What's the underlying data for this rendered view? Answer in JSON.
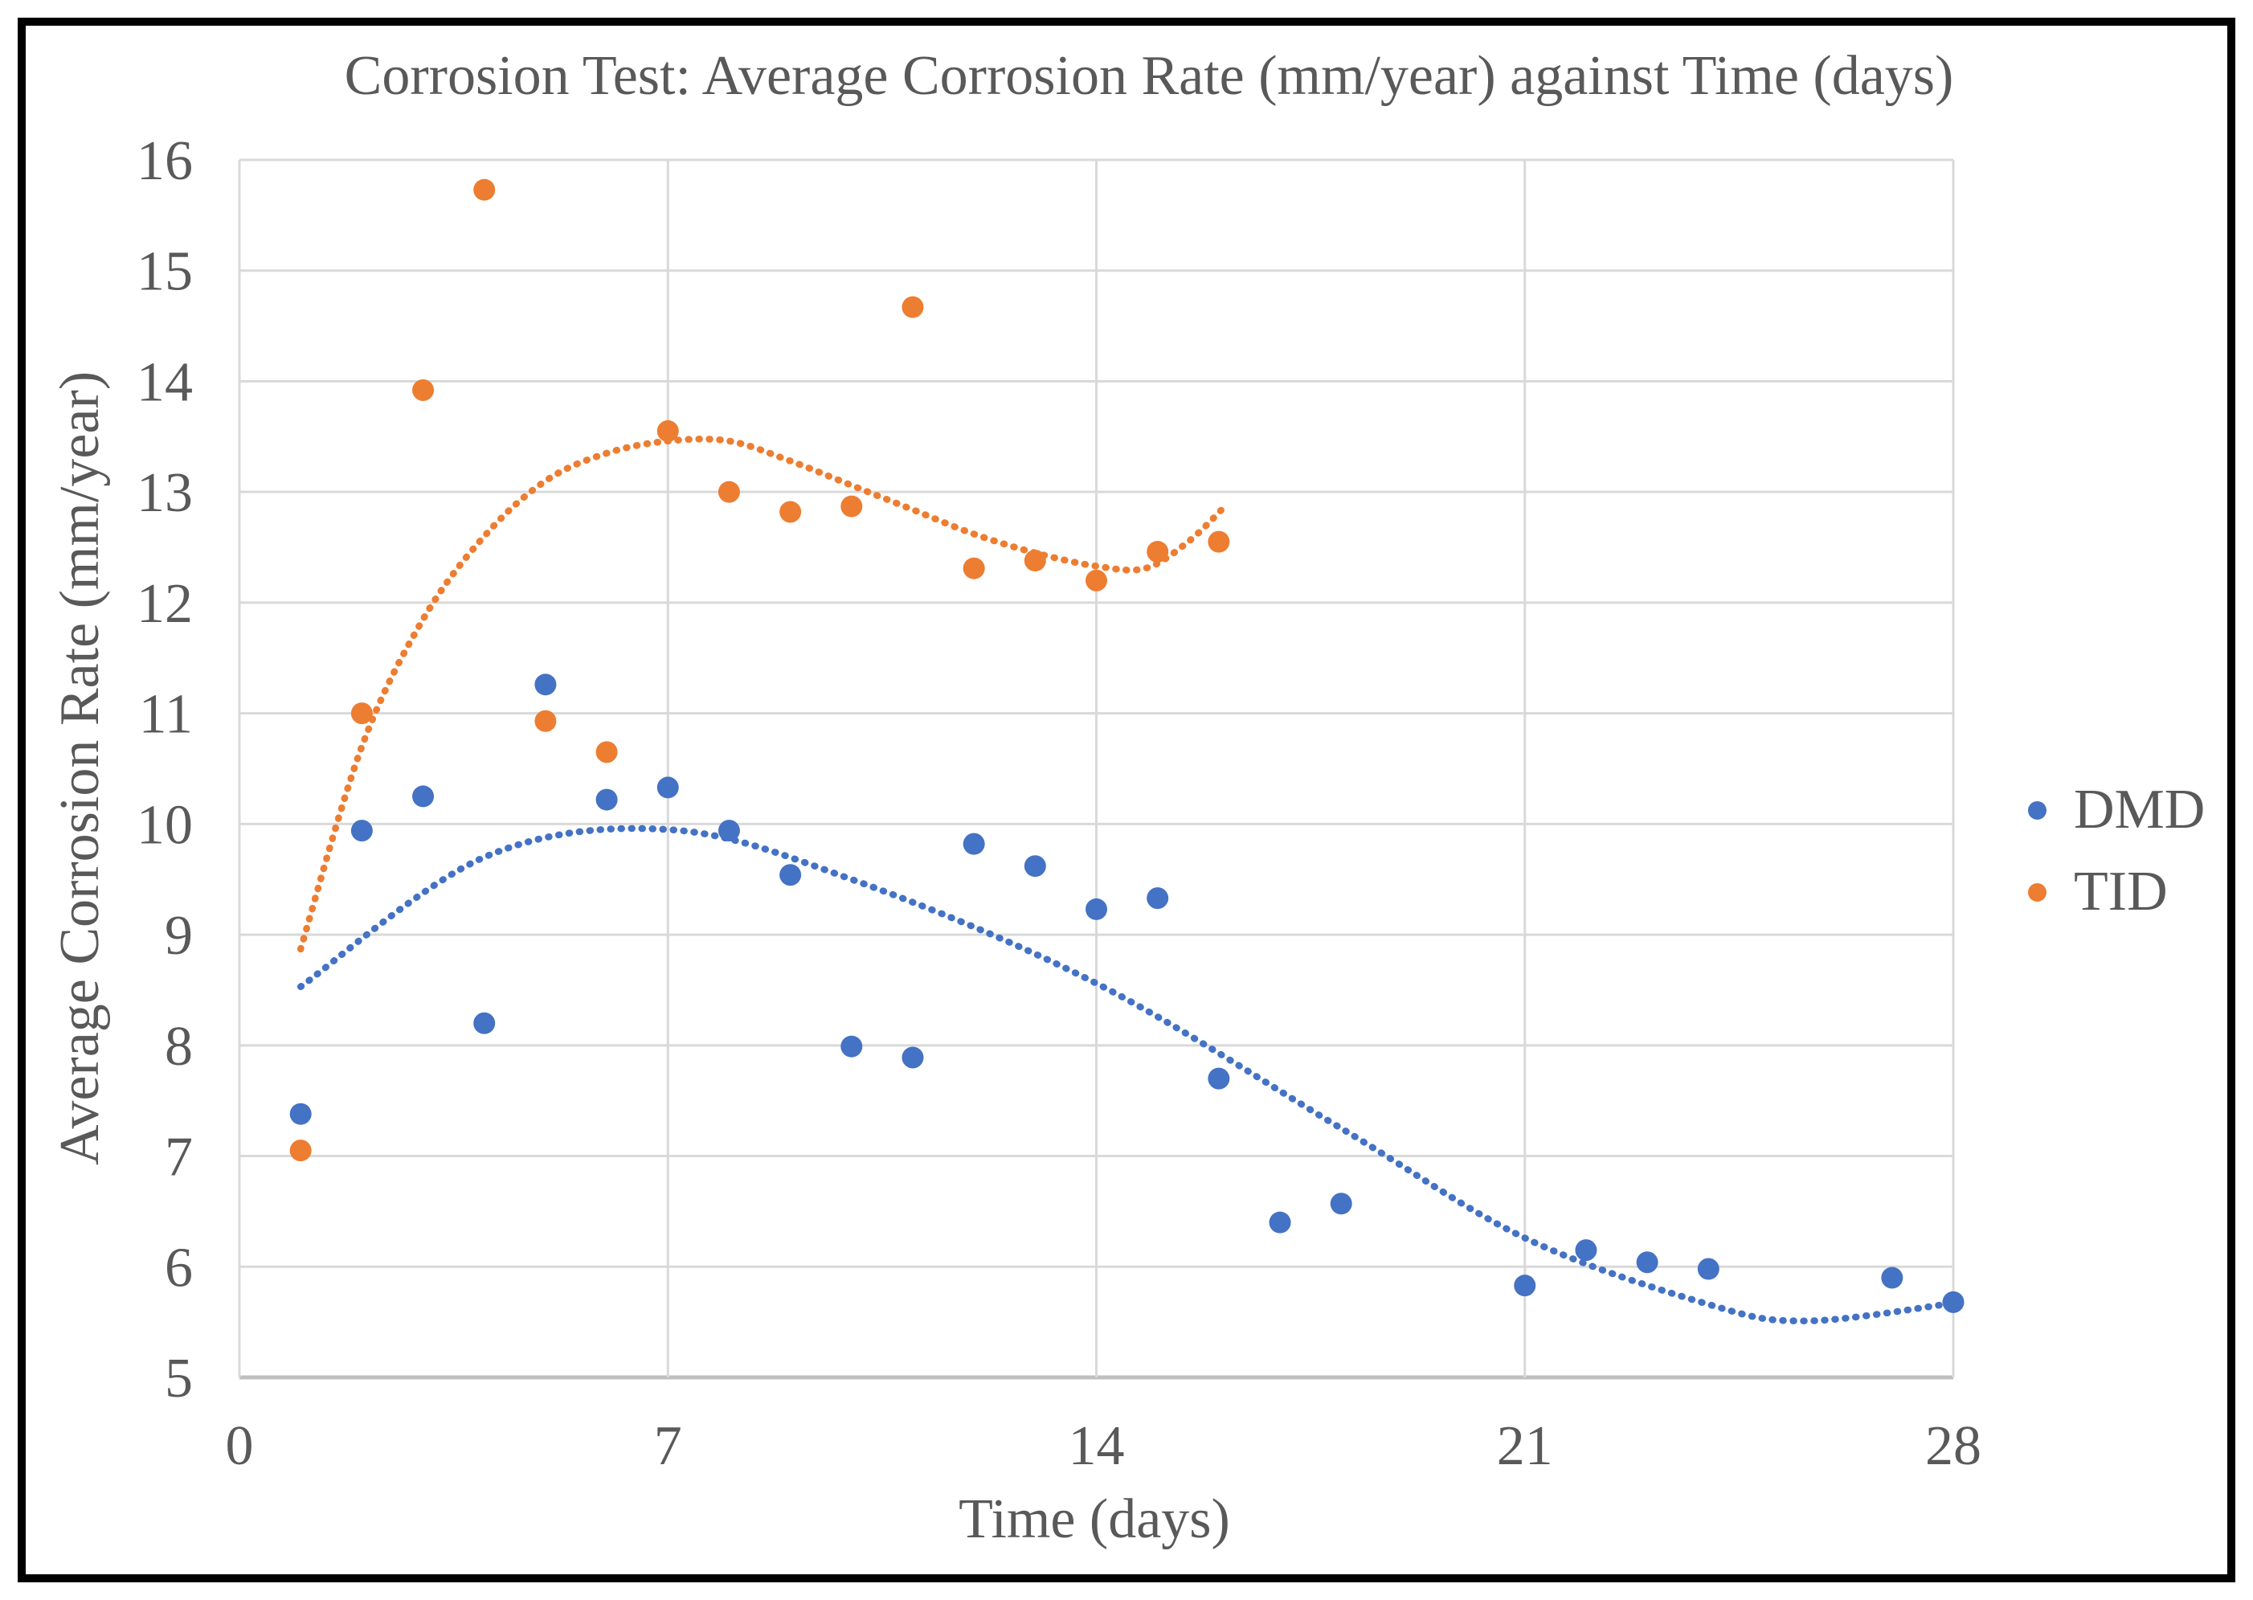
{
  "title": "Corrosion Test: Average Corrosion Rate (mm/year) against Time (days)",
  "colors": {
    "dmd": "#4472C4",
    "tid": "#ED7D31",
    "grid": "#D9D9D9",
    "axis": "#BFBFBF",
    "text": "#595959",
    "background": "#FFFFFF",
    "frame": "#000000"
  },
  "legend": {
    "items": [
      {
        "label": "DMD",
        "color": "#4472C4"
      },
      {
        "label": "TID",
        "color": "#ED7D31"
      }
    ]
  },
  "chart_data": {
    "type": "scatter",
    "title": "Corrosion Test: Average Corrosion Rate (mm/year) against Time (days)",
    "xlabel": "Time (days)",
    "ylabel": "Average Corrosion Rate (mm/year)",
    "xlim": [
      0,
      28
    ],
    "ylim": [
      5,
      16
    ],
    "x_ticks": [
      0,
      7,
      14,
      21,
      28
    ],
    "y_ticks": [
      5,
      6,
      7,
      8,
      9,
      10,
      11,
      12,
      13,
      14,
      15,
      16
    ],
    "grid": true,
    "legend_position": "right",
    "series": [
      {
        "name": "DMD",
        "color": "#4472C4",
        "marker": "circle",
        "points": [
          [
            1,
            7.38
          ],
          [
            2,
            9.94
          ],
          [
            3,
            10.25
          ],
          [
            4,
            8.2
          ],
          [
            5,
            11.26
          ],
          [
            6,
            10.22
          ],
          [
            7,
            10.33
          ],
          [
            8,
            9.94
          ],
          [
            9,
            9.54
          ],
          [
            10,
            7.99
          ],
          [
            11,
            7.89
          ],
          [
            12,
            9.82
          ],
          [
            13,
            9.62
          ],
          [
            14,
            9.23
          ],
          [
            15,
            9.33
          ],
          [
            16,
            7.7
          ],
          [
            17,
            6.4
          ],
          [
            18,
            6.57
          ],
          [
            21,
            5.83
          ],
          [
            22,
            6.15
          ],
          [
            23,
            6.04
          ],
          [
            24,
            5.98
          ],
          [
            27,
            5.9
          ],
          [
            28,
            5.68
          ]
        ],
        "trendline_style": "dotted",
        "trendline_points": [
          [
            1,
            8.53
          ],
          [
            4,
            9.7
          ],
          [
            7,
            9.95
          ],
          [
            10,
            9.5
          ],
          [
            14,
            8.56
          ],
          [
            18,
            7.25
          ],
          [
            21,
            6.26
          ],
          [
            24,
            5.66
          ],
          [
            25.6,
            5.51
          ],
          [
            28,
            5.67
          ]
        ]
      },
      {
        "name": "TID",
        "color": "#ED7D31",
        "marker": "circle",
        "points": [
          [
            1,
            7.05
          ],
          [
            2,
            11.0
          ],
          [
            3,
            13.92
          ],
          [
            4,
            15.73
          ],
          [
            5,
            10.93
          ],
          [
            6,
            10.65
          ],
          [
            7,
            13.55
          ],
          [
            8,
            13.0
          ],
          [
            9,
            12.82
          ],
          [
            10,
            12.87
          ],
          [
            11,
            14.67
          ],
          [
            12,
            12.31
          ],
          [
            13,
            12.38
          ],
          [
            14,
            12.2
          ],
          [
            15,
            12.46
          ],
          [
            16,
            12.55
          ]
        ],
        "trendline_style": "dotted",
        "trendline_points": [
          [
            1,
            8.87
          ],
          [
            2,
            10.7
          ],
          [
            3,
            11.85
          ],
          [
            4,
            12.6
          ],
          [
            5,
            13.1
          ],
          [
            6,
            13.35
          ],
          [
            7,
            13.46
          ],
          [
            8,
            13.46
          ],
          [
            9,
            13.28
          ],
          [
            10,
            13.06
          ],
          [
            11,
            12.84
          ],
          [
            12,
            12.62
          ],
          [
            13,
            12.45
          ],
          [
            14,
            12.33
          ],
          [
            14.8,
            12.31
          ],
          [
            15.5,
            12.55
          ],
          [
            16.1,
            12.87
          ]
        ]
      }
    ]
  }
}
